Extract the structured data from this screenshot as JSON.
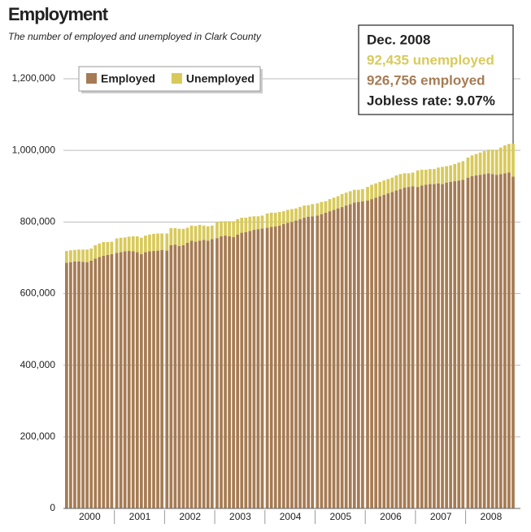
{
  "chart_data": {
    "type": "stacked-bar",
    "title": "Employment",
    "subtitle": "The number of employed and unemployed in Clark County",
    "annotation": {
      "title": "Dec. 2008",
      "lines": [
        "92,435 unemployed",
        "926,756 employed",
        "Jobless rate: 9.07%"
      ]
    },
    "categories": [
      "2000",
      "2001",
      "2002",
      "2003",
      "2004",
      "2005",
      "2006",
      "2007",
      "2008"
    ],
    "series": [
      {
        "name": "Employed",
        "color": "#a67b53",
        "values": [
          [
            686000,
            688000,
            690000,
            690000,
            689000,
            688000,
            692000,
            698000,
            702000,
            706000,
            708000,
            710000
          ],
          [
            714000,
            716000,
            718000,
            719000,
            718000,
            716000,
            710000,
            716000,
            718000,
            719000,
            720000,
            722000
          ],
          [
            720000,
            735000,
            737000,
            733000,
            735000,
            742000,
            748000,
            745000,
            748000,
            750000,
            748000,
            752000
          ],
          [
            755000,
            760000,
            762000,
            760000,
            758000,
            765000,
            770000,
            772000,
            775000,
            778000,
            780000,
            782000
          ],
          [
            784000,
            786000,
            788000,
            790000,
            794000,
            798000,
            800000,
            804000,
            808000,
            812000,
            815000,
            816000
          ],
          [
            818000,
            822000,
            826000,
            830000,
            834000,
            838000,
            842000,
            846000,
            850000,
            854000,
            856000,
            858000
          ],
          [
            860000,
            864000,
            868000,
            872000,
            876000,
            880000,
            884000,
            888000,
            892000,
            896000,
            898000,
            900000
          ],
          [
            898000,
            902000,
            904000,
            906000,
            906000,
            908000,
            906000,
            910000,
            912000,
            914000,
            916000,
            918000
          ],
          [
            924000,
            928000,
            930000,
            932000,
            934000,
            936000,
            934000,
            932000,
            934000,
            936000,
            938000,
            926756
          ]
        ]
      },
      {
        "name": "Unemployed",
        "color": "#d8ca5a",
        "values": [
          [
            33000,
            33000,
            32000,
            33000,
            34000,
            35000,
            34000,
            37000,
            38000,
            38000,
            36000,
            35000
          ],
          [
            40000,
            40000,
            39000,
            40000,
            42000,
            44000,
            46000,
            46000,
            47000,
            48000,
            48000,
            46000
          ],
          [
            48000,
            48000,
            46000,
            48000,
            46000,
            42000,
            42000,
            44000,
            44000,
            40000,
            40000,
            38000
          ],
          [
            45000,
            42000,
            40000,
            42000,
            44000,
            43000,
            42000,
            40000,
            40000,
            38000,
            36000,
            36000
          ],
          [
            40000,
            40000,
            38000,
            38000,
            36000,
            36000,
            36000,
            34000,
            34000,
            34000,
            32000,
            34000
          ],
          [
            34000,
            34000,
            32000,
            34000,
            34000,
            34000,
            36000,
            36000,
            36000,
            36000,
            34000,
            34000
          ],
          [
            38000,
            40000,
            40000,
            40000,
            40000,
            40000,
            40000,
            42000,
            42000,
            40000,
            38000,
            38000
          ],
          [
            46000,
            44000,
            42000,
            42000,
            42000,
            44000,
            48000,
            46000,
            46000,
            48000,
            50000,
            52000
          ],
          [
            56000,
            58000,
            60000,
            62000,
            64000,
            66000,
            68000,
            70000,
            74000,
            78000,
            80000,
            92435
          ]
        ]
      }
    ],
    "ylim": [
      0,
      1200000
    ],
    "yticks": [
      0,
      {
        "value": 200000,
        "label": "200,000"
      },
      {
        "value": 400000,
        "label": "400,000"
      },
      {
        "value": 600000,
        "label": "600,000"
      },
      {
        "value": 800000,
        "label": "800,000"
      },
      {
        "value": 1000000,
        "label": "1,000,000"
      },
      {
        "value": 1200000,
        "label": "1,200,000"
      }
    ],
    "grid": true,
    "legend": "upper-left"
  }
}
